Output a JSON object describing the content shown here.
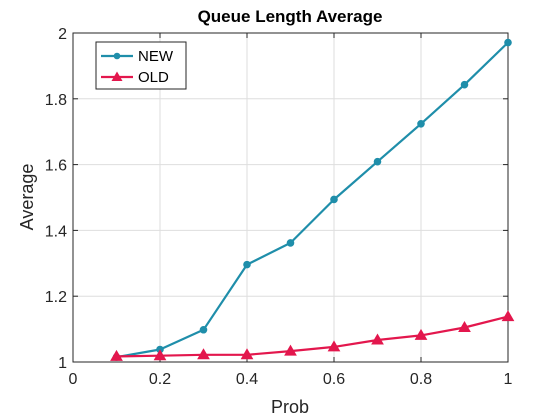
{
  "chart_data": {
    "type": "line",
    "title": "Queue Length Average",
    "xlabel": "Prob",
    "ylabel": "Average",
    "xlim": [
      0,
      1
    ],
    "ylim": [
      1,
      2
    ],
    "xticks": [
      0,
      0.2,
      0.4,
      0.6,
      0.8,
      1
    ],
    "xtick_labels": [
      "0",
      "0.2",
      "0.4",
      "0.6",
      "0.8",
      "1"
    ],
    "yticks": [
      1,
      1.2,
      1.4,
      1.6,
      1.8,
      2
    ],
    "ytick_labels": [
      "1",
      "1.2",
      "1.4",
      "1.6",
      "1.8",
      "2"
    ],
    "grid": true,
    "legend_position": "top-left",
    "x": [
      0.1,
      0.2,
      0.3,
      0.4,
      0.5,
      0.6,
      0.7,
      0.8,
      0.9,
      1.0
    ],
    "series": [
      {
        "name": "NEW",
        "color": "#1f8eaa",
        "marker": "circle",
        "values": [
          1.015,
          1.038,
          1.098,
          1.296,
          1.362,
          1.494,
          1.609,
          1.724,
          1.843,
          1.971
        ]
      },
      {
        "name": "OLD",
        "color": "#e3174d",
        "marker": "triangle",
        "values": [
          1.017,
          1.019,
          1.022,
          1.022,
          1.033,
          1.046,
          1.067,
          1.081,
          1.105,
          1.138
        ]
      }
    ]
  }
}
